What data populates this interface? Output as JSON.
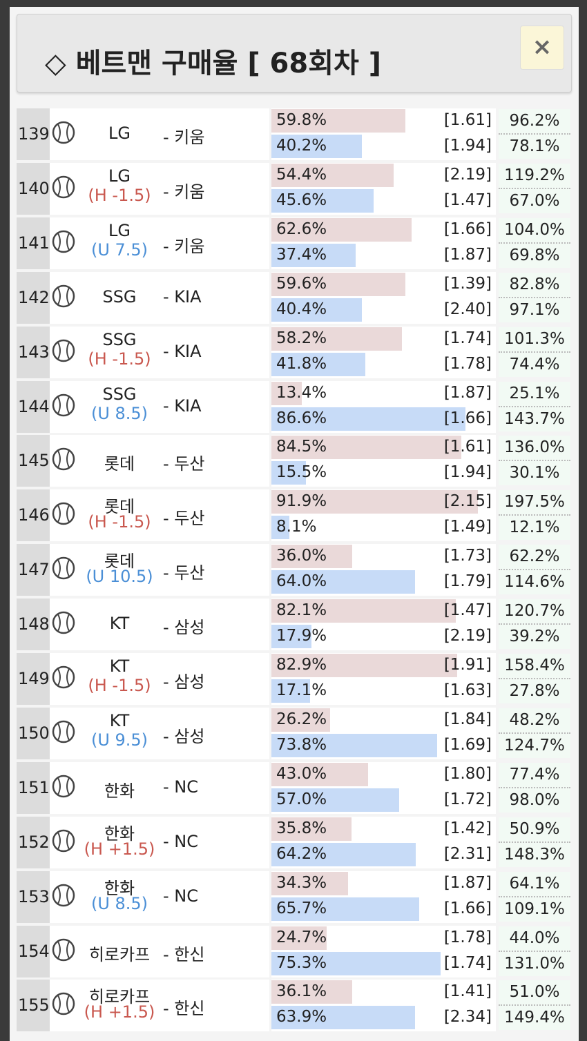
{
  "header": {
    "title": "◇ 베트맨 구매율 [ 68회차 ]",
    "close": "×"
  },
  "table": {
    "rows": [
      {
        "no": "139",
        "team": "LG",
        "opponent": "- 키움",
        "pct": [
          "59.8%",
          "40.2%"
        ],
        "odds": [
          "[1.61]",
          "[1.94]"
        ],
        "rate": [
          "96.2%",
          "78.1%"
        ]
      },
      {
        "no": "140",
        "team": "LG",
        "handicap": "(H -1.5)",
        "opponent": "- 키움",
        "pct": [
          "54.4%",
          "45.6%"
        ],
        "odds": [
          "[2.19]",
          "[1.47]"
        ],
        "rate": [
          "119.2%",
          "67.0%"
        ]
      },
      {
        "no": "141",
        "team": "LG",
        "handicap": "(U 7.5)",
        "opponent": "- 키움",
        "pct": [
          "62.6%",
          "37.4%"
        ],
        "odds": [
          "[1.66]",
          "[1.87]"
        ],
        "rate": [
          "104.0%",
          "69.8%"
        ]
      },
      {
        "no": "142",
        "team": "SSG",
        "opponent": "- KIA",
        "pct": [
          "59.6%",
          "40.4%"
        ],
        "odds": [
          "[1.39]",
          "[2.40]"
        ],
        "rate": [
          "82.8%",
          "97.1%"
        ]
      },
      {
        "no": "143",
        "team": "SSG",
        "handicap": "(H -1.5)",
        "opponent": "- KIA",
        "pct": [
          "58.2%",
          "41.8%"
        ],
        "odds": [
          "[1.74]",
          "[1.78]"
        ],
        "rate": [
          "101.3%",
          "74.4%"
        ]
      },
      {
        "no": "144",
        "team": "SSG",
        "handicap": "(U 8.5)",
        "opponent": "- KIA",
        "pct": [
          "13.4%",
          "86.6%"
        ],
        "odds": [
          "[1.87]",
          "[1.66]"
        ],
        "rate": [
          "25.1%",
          "143.7%"
        ]
      },
      {
        "no": "145",
        "team": "롯데",
        "opponent": "- 두산",
        "pct": [
          "84.5%",
          "15.5%"
        ],
        "odds": [
          "[1.61]",
          "[1.94]"
        ],
        "rate": [
          "136.0%",
          "30.1%"
        ]
      },
      {
        "no": "146",
        "team": "롯데",
        "handicap": "(H -1.5)",
        "opponent": "- 두산",
        "pct": [
          "91.9%",
          "8.1%"
        ],
        "odds": [
          "[2.15]",
          "[1.49]"
        ],
        "rate": [
          "197.5%",
          "12.1%"
        ]
      },
      {
        "no": "147",
        "team": "롯데",
        "handicap": "(U 10.5)",
        "opponent": "- 두산",
        "pct": [
          "36.0%",
          "64.0%"
        ],
        "odds": [
          "[1.73]",
          "[1.79]"
        ],
        "rate": [
          "62.2%",
          "114.6%"
        ]
      },
      {
        "no": "148",
        "team": "KT",
        "opponent": "- 삼성",
        "pct": [
          "82.1%",
          "17.9%"
        ],
        "odds": [
          "[1.47]",
          "[2.19]"
        ],
        "rate": [
          "120.7%",
          "39.2%"
        ]
      },
      {
        "no": "149",
        "team": "KT",
        "handicap": "(H -1.5)",
        "opponent": "- 삼성",
        "pct": [
          "82.9%",
          "17.1%"
        ],
        "odds": [
          "[1.91]",
          "[1.63]"
        ],
        "rate": [
          "158.4%",
          "27.8%"
        ]
      },
      {
        "no": "150",
        "team": "KT",
        "handicap": "(U 9.5)",
        "opponent": "- 삼성",
        "pct": [
          "26.2%",
          "73.8%"
        ],
        "odds": [
          "[1.84]",
          "[1.69]"
        ],
        "rate": [
          "48.2%",
          "124.7%"
        ]
      },
      {
        "no": "151",
        "team": "한화",
        "opponent": "- NC",
        "pct": [
          "43.0%",
          "57.0%"
        ],
        "odds": [
          "[1.80]",
          "[1.72]"
        ],
        "rate": [
          "77.4%",
          "98.0%"
        ]
      },
      {
        "no": "152",
        "team": "한화",
        "handicap": "(H +1.5)",
        "opponent": "- NC",
        "pct": [
          "35.8%",
          "64.2%"
        ],
        "odds": [
          "[1.42]",
          "[2.31]"
        ],
        "rate": [
          "50.9%",
          "148.3%"
        ]
      },
      {
        "no": "153",
        "team": "한화",
        "handicap": "(U 8.5)",
        "opponent": "- NC",
        "pct": [
          "34.3%",
          "65.7%"
        ],
        "odds": [
          "[1.87]",
          "[1.66]"
        ],
        "rate": [
          "64.1%",
          "109.1%"
        ]
      },
      {
        "no": "154",
        "team": "히로카프",
        "opponent": "- 한신",
        "pct": [
          "24.7%",
          "75.3%"
        ],
        "odds": [
          "[1.78]",
          "[1.74]"
        ],
        "rate": [
          "44.0%",
          "131.0%"
        ]
      },
      {
        "no": "155",
        "team": "히로카프",
        "handicap": "(H +1.5)",
        "opponent": "- 한신",
        "pct": [
          "36.1%",
          "63.9%"
        ],
        "odds": [
          "[1.41]",
          "[2.34]"
        ],
        "rate": [
          "51.0%",
          "149.4%"
        ]
      }
    ]
  }
}
